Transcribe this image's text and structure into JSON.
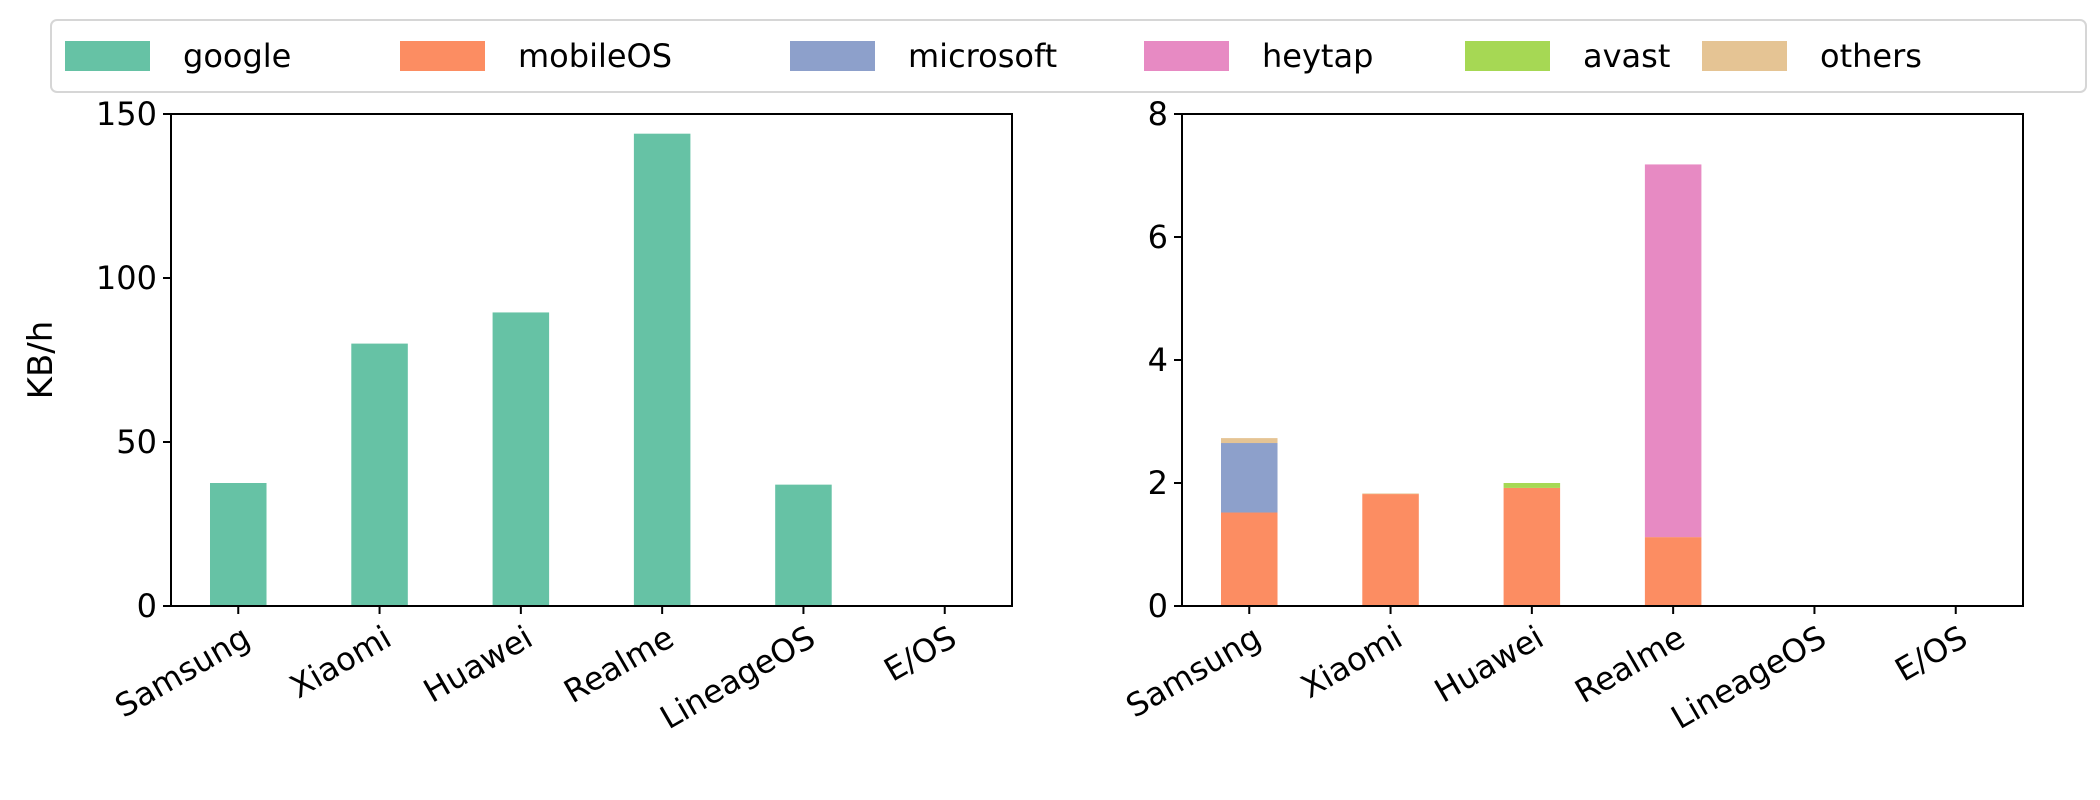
{
  "chart_data": [
    {
      "type": "bar",
      "title": "",
      "xlabel": "",
      "ylabel": "KB/h",
      "categories": [
        "Samsung",
        "Xiaomi",
        "Huawei",
        "Realme",
        "LineageOS",
        "E/OS"
      ],
      "ylim": [
        0,
        150
      ],
      "yticks": [
        0,
        50,
        100,
        150
      ],
      "series": [
        {
          "name": "google",
          "values": [
            37.5,
            80,
            89.5,
            144,
            37,
            0
          ]
        }
      ]
    },
    {
      "type": "bar",
      "stacked": true,
      "title": "",
      "xlabel": "",
      "ylabel": "",
      "categories": [
        "Samsung",
        "Xiaomi",
        "Huawei",
        "Realme",
        "LineageOS",
        "E/OS"
      ],
      "ylim": [
        0,
        8
      ],
      "yticks": [
        0,
        2,
        4,
        6,
        8
      ],
      "series": [
        {
          "name": "mobileOS",
          "values": [
            1.52,
            1.82,
            1.92,
            1.12,
            0,
            0
          ]
        },
        {
          "name": "microsoft",
          "values": [
            1.13,
            0,
            0,
            0,
            0,
            0
          ]
        },
        {
          "name": "heytap",
          "values": [
            0,
            0,
            0,
            6.06,
            0,
            0
          ]
        },
        {
          "name": "avast",
          "values": [
            0,
            0,
            0.08,
            0,
            0,
            0
          ]
        },
        {
          "name": "others",
          "values": [
            0.08,
            0.01,
            0,
            0,
            0.01,
            0
          ]
        }
      ]
    }
  ],
  "legend": {
    "placement": "top",
    "entries": [
      {
        "name": "google",
        "color": "#66c2a5"
      },
      {
        "name": "mobileOS",
        "color": "#fc8d62"
      },
      {
        "name": "microsoft",
        "color": "#8da0cb"
      },
      {
        "name": "heytap",
        "color": "#e78ac3"
      },
      {
        "name": "avast",
        "color": "#a6d854"
      },
      {
        "name": "others",
        "color": "#e5c494"
      }
    ]
  }
}
